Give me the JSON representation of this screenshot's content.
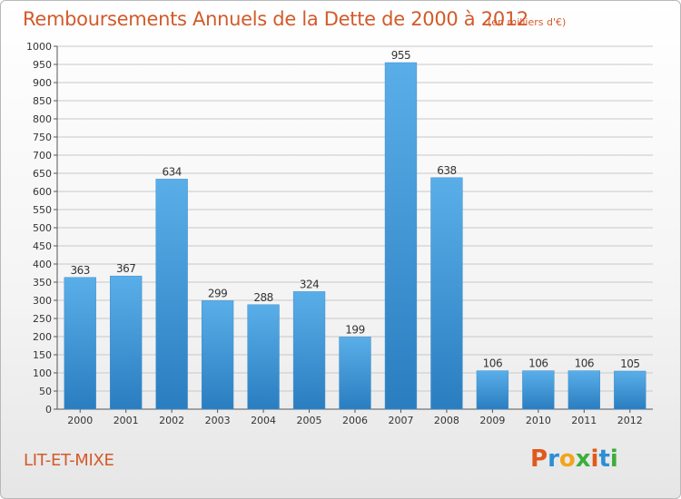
{
  "header": {
    "title": "Remboursements Annuels de la Dette de 2000 à 2012",
    "unit": "(en milliers d'€)"
  },
  "footer": {
    "commune": "LIT-ET-MIXE",
    "logo_text": "Proxiti"
  },
  "colors": {
    "accent": "#d35a2a",
    "bar_top": "#5aaee8",
    "bar_bottom": "#2a7ec0",
    "grid": "#c8c8c8"
  },
  "chart_data": {
    "type": "bar",
    "title": "Remboursements Annuels de la Dette de 2000 à 2012",
    "subtitle": "(en milliers d'€)",
    "categories": [
      "2000",
      "2001",
      "2002",
      "2003",
      "2004",
      "2005",
      "2006",
      "2007",
      "2008",
      "2009",
      "2010",
      "2011",
      "2012"
    ],
    "values": [
      363,
      367,
      634,
      299,
      288,
      324,
      199,
      955,
      638,
      106,
      106,
      106,
      105
    ],
    "ylim": [
      0,
      1000
    ],
    "yticks": [
      0,
      50,
      100,
      150,
      200,
      250,
      300,
      350,
      400,
      450,
      500,
      550,
      600,
      650,
      700,
      750,
      800,
      850,
      900,
      950,
      1000
    ],
    "grid": true,
    "data_labels": true
  }
}
